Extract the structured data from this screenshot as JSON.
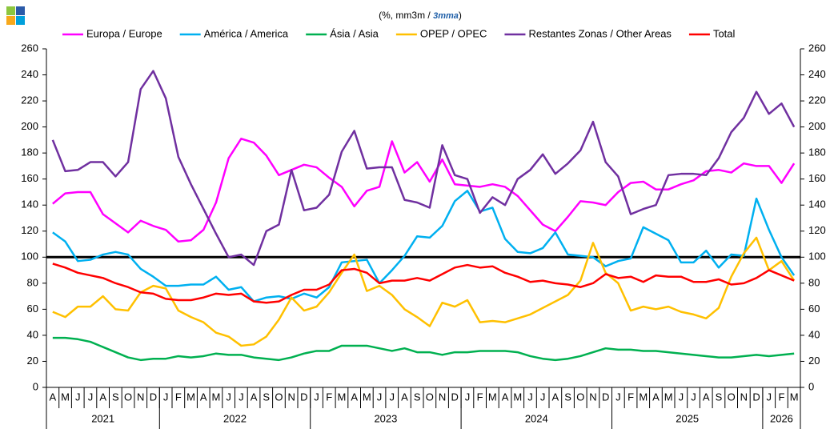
{
  "chart_data": {
    "type": "line",
    "subtitle": "(%, mm3m / ",
    "subtitle_emphasis": "3mma",
    "subtitle_end": ")",
    "groups": [
      {
        "label": "2021",
        "categories": [
          "A",
          "M",
          "J",
          "J",
          "A",
          "S",
          "O",
          "N",
          "D"
        ]
      },
      {
        "label": "2022",
        "categories": [
          "J",
          "F",
          "M",
          "A",
          "M",
          "J",
          "J",
          "A",
          "S",
          "O",
          "N",
          "D"
        ]
      },
      {
        "label": "2023",
        "categories": [
          "J",
          "F",
          "M",
          "A",
          "M",
          "J",
          "J",
          "A",
          "S",
          "O",
          "N",
          "D"
        ]
      },
      {
        "label": "2024",
        "categories": [
          "J",
          "F",
          "M",
          "A",
          "M",
          "J",
          "J",
          "A",
          "S",
          "O",
          "N",
          "D"
        ]
      },
      {
        "label": "2025",
        "categories": [
          "J",
          "F",
          "M",
          "A",
          "M",
          "J",
          "J",
          "A",
          "S",
          "O",
          "N",
          "D"
        ]
      },
      {
        "label": "2026",
        "categories": [
          "J",
          "F",
          "M"
        ]
      }
    ],
    "series": [
      {
        "name": "Europa / Europe",
        "color": "#ff00ff",
        "values": [
          141,
          149,
          150,
          150,
          133,
          126,
          119,
          128,
          124,
          121,
          112,
          113,
          121,
          142,
          176,
          191,
          188,
          178,
          163,
          167,
          171,
          169,
          161,
          154,
          139,
          151,
          154,
          189,
          165,
          173,
          158,
          175,
          156,
          155,
          154,
          156,
          154,
          147,
          136,
          125,
          120,
          131,
          143,
          142,
          140,
          150,
          157,
          158,
          152,
          152,
          156,
          159,
          166,
          167,
          165,
          172,
          170,
          170,
          157,
          172
        ]
      },
      {
        "name": "América / America",
        "color": "#00b0f0",
        "values": [
          119,
          112,
          97,
          98,
          102,
          104,
          102,
          91,
          85,
          78,
          78,
          79,
          79,
          85,
          75,
          77,
          66,
          69,
          70,
          68,
          72,
          69,
          77,
          96,
          97,
          98,
          80,
          90,
          101,
          116,
          115,
          124,
          143,
          151,
          135,
          138,
          114,
          104,
          103,
          107,
          119,
          102,
          101,
          100,
          93,
          97,
          99,
          123,
          118,
          113,
          96,
          96,
          105,
          92,
          102,
          101,
          145,
          121,
          100,
          86
        ]
      },
      {
        "name": "Ásia / Asia",
        "color": "#00b050",
        "values": [
          38,
          38,
          37,
          35,
          31,
          27,
          23,
          21,
          22,
          22,
          24,
          23,
          24,
          26,
          25,
          25,
          23,
          22,
          21,
          23,
          26,
          28,
          28,
          32,
          32,
          32,
          30,
          28,
          30,
          27,
          27,
          25,
          27,
          27,
          28,
          28,
          28,
          27,
          24,
          22,
          21,
          22,
          24,
          27,
          30,
          29,
          29,
          28,
          28,
          27,
          26,
          25,
          24,
          23,
          23,
          24,
          25,
          24,
          25,
          26
        ]
      },
      {
        "name": "OPEP / OPEC",
        "color": "#ffc000",
        "values": [
          58,
          54,
          62,
          62,
          70,
          60,
          59,
          73,
          78,
          76,
          59,
          54,
          50,
          42,
          39,
          32,
          33,
          39,
          52,
          69,
          59,
          62,
          73,
          88,
          102,
          74,
          78,
          71,
          60,
          54,
          47,
          65,
          62,
          67,
          50,
          51,
          50,
          53,
          56,
          61,
          66,
          71,
          82,
          111,
          88,
          80,
          59,
          62,
          60,
          62,
          58,
          56,
          53,
          61,
          85,
          103,
          115,
          90,
          97,
          82
        ]
      },
      {
        "name": "Restantes Zonas / Other Areas",
        "color": "#7030a0",
        "values": [
          190,
          166,
          167,
          173,
          173,
          162,
          173,
          229,
          243,
          222,
          177,
          156,
          137,
          118,
          100,
          102,
          94,
          120,
          125,
          167,
          136,
          138,
          148,
          181,
          197,
          168,
          169,
          169,
          144,
          142,
          138,
          186,
          163,
          160,
          134,
          146,
          140,
          160,
          167,
          179,
          164,
          172,
          182,
          204,
          173,
          162,
          133,
          137,
          140,
          163,
          164,
          164,
          163,
          176,
          196,
          207,
          227,
          210,
          218,
          200
        ]
      },
      {
        "name": "Total",
        "color": "#ff0000",
        "values": [
          95,
          92,
          88,
          86,
          84,
          80,
          77,
          73,
          72,
          68,
          67,
          67,
          69,
          72,
          71,
          72,
          66,
          65,
          66,
          71,
          75,
          75,
          79,
          90,
          91,
          88,
          80,
          82,
          82,
          84,
          82,
          87,
          92,
          94,
          92,
          93,
          88,
          85,
          81,
          82,
          80,
          79,
          77,
          80,
          87,
          84,
          85,
          81,
          86,
          85,
          85,
          81,
          81,
          83,
          79,
          80,
          84,
          90,
          86,
          82
        ]
      }
    ],
    "reference_line": 100,
    "ylim": [
      0,
      260
    ],
    "yticks": [
      0,
      20,
      40,
      60,
      80,
      100,
      120,
      140,
      160,
      180,
      200,
      220,
      240,
      260
    ],
    "y2lim": [
      0,
      260
    ],
    "y2ticks": [
      0,
      20,
      40,
      60,
      80,
      100,
      120,
      140,
      160,
      180,
      200,
      220,
      240,
      260
    ]
  }
}
